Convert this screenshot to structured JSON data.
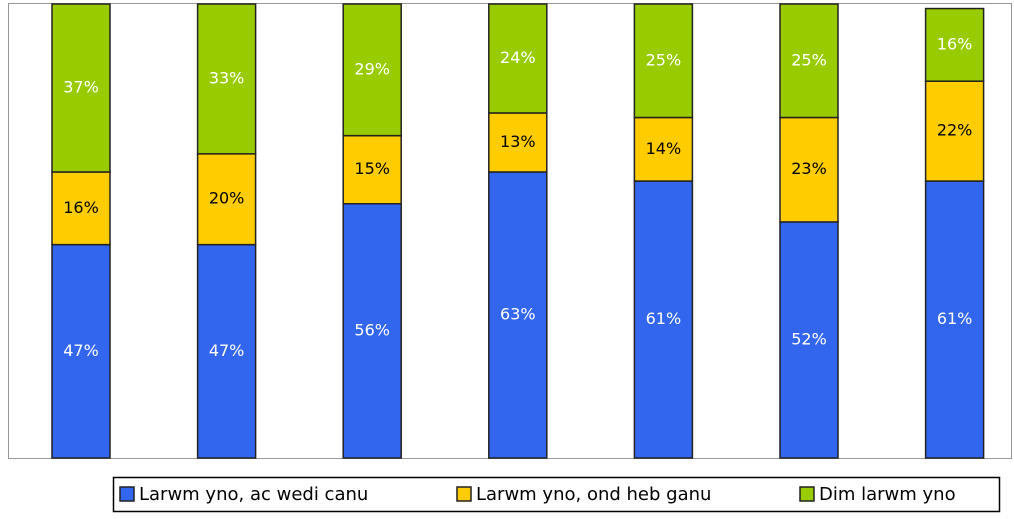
{
  "chart_data": {
    "type": "stacked_bar",
    "categories": [
      null,
      null,
      null,
      null,
      null,
      null,
      null
    ],
    "series": [
      {
        "name": "Larwm yno, ac wedi canu",
        "color": "#3366ee",
        "label_color": "#ffffff",
        "values": [
          47,
          47,
          56,
          63,
          61,
          52,
          61
        ],
        "value_labels": [
          "47%",
          "47%",
          "56%",
          "63%",
          "61%",
          "52%",
          "61%"
        ]
      },
      {
        "name": "Larwm yno, ond heb ganu",
        "color": "#ffcc00",
        "label_color": "#000000",
        "values": [
          16,
          20,
          15,
          13,
          14,
          23,
          22
        ],
        "value_labels": [
          "16%",
          "20%",
          "15%",
          "13%",
          "14%",
          "23%",
          "22%"
        ]
      },
      {
        "name": "Dim larwm yno",
        "color": "#99cc00",
        "label_color": "#ffffff",
        "values": [
          37,
          33,
          29,
          24,
          25,
          25,
          16
        ],
        "value_labels": [
          "37%",
          "33%",
          "29%",
          "24%",
          "25%",
          "25%",
          "16%"
        ]
      }
    ],
    "ylim": [
      0,
      100
    ],
    "legend": "bottom"
  }
}
